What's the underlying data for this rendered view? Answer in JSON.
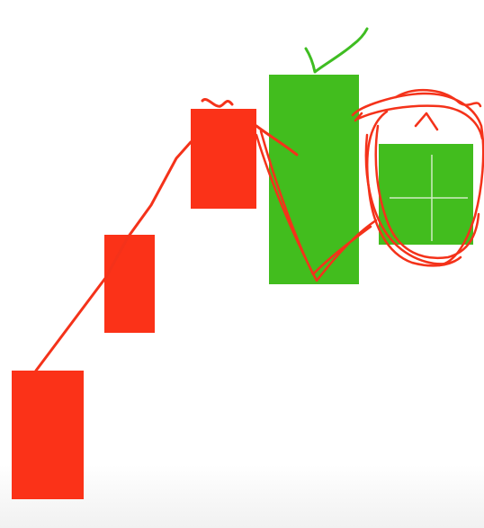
{
  "colors": {
    "background": "#ffffff",
    "red_block": "#fb3218",
    "green_block": "#42bd1e",
    "red_stroke": "#f4321a",
    "green_stroke": "#3fbd22",
    "crosshair": "#e8f5e2"
  },
  "elements": [
    {
      "kind": "red-rectangle",
      "order": 1
    },
    {
      "kind": "red-rectangle",
      "order": 2
    },
    {
      "kind": "red-rectangle",
      "order": 3
    },
    {
      "kind": "green-rectangle",
      "order": 4,
      "annotation": "checkmark"
    },
    {
      "kind": "green-rectangle",
      "order": 5,
      "annotation": "circled-scribble",
      "marker": "crosshair"
    }
  ]
}
